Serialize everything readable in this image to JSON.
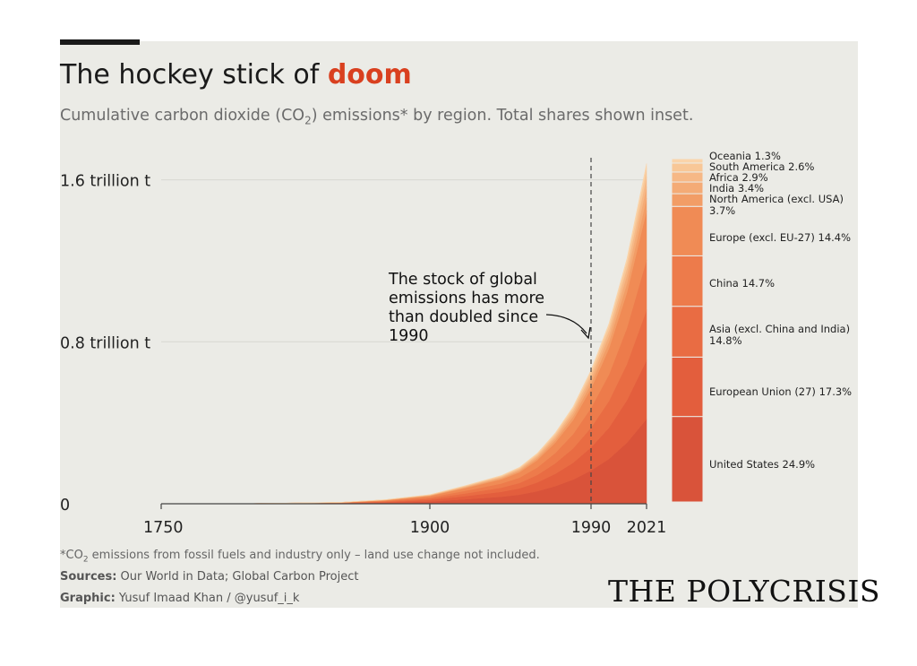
{
  "header": {
    "title_prefix": "The hockey stick of ",
    "title_highlight": "doom",
    "subtitle_pre": "Cumulative carbon dioxide (CO",
    "subtitle_sub": "2",
    "subtitle_post": ") emissions* by region. Total shares shown inset."
  },
  "footer": {
    "footnote_pre": "*CO",
    "footnote_sub": "2",
    "footnote_post": " emissions from fossil fuels and industry only – land use change not included.",
    "sources_label": "Sources:",
    "sources_text": " Our World in Data; Global Carbon Project",
    "graphic_label": "Graphic:",
    "graphic_text": " Yusuf Imaad Khan / @yusuf_i_k"
  },
  "brand": {
    "logo_text": "THE POLYCRISIS"
  },
  "colors": {
    "background": "#ebebe6",
    "accent": "#d9401f",
    "region_palette": [
      "#d9533a",
      "#e35e3d",
      "#e96c43",
      "#ed7b4b",
      "#f08b55",
      "#f29d66",
      "#f4ab76",
      "#f6b886",
      "#f8c797",
      "#fad4aa"
    ]
  },
  "chart_data": {
    "type": "area",
    "title": "The hockey stick of doom",
    "ylabel": "",
    "xlim": [
      1750,
      2021
    ],
    "ylim": [
      0,
      1.7
    ],
    "x_ticks": [
      1750,
      1900,
      1990,
      2021
    ],
    "y_ticks": [
      {
        "value": 0,
        "label": "0"
      },
      {
        "value": 0.8,
        "label": "0.8 trillion t"
      },
      {
        "value": 1.6,
        "label": "1.6 trillion t"
      }
    ],
    "x": [
      1750,
      1800,
      1850,
      1875,
      1900,
      1920,
      1940,
      1950,
      1960,
      1970,
      1980,
      1990,
      2000,
      2010,
      2021
    ],
    "total": [
      0,
      0.001,
      0.007,
      0.02,
      0.045,
      0.09,
      0.14,
      0.18,
      0.25,
      0.35,
      0.48,
      0.66,
      0.89,
      1.21,
      1.68
    ],
    "stack_order": "bottom to top",
    "series": [
      {
        "name": "United States",
        "share": 24.9
      },
      {
        "name": "European Union (27)",
        "share": 17.3
      },
      {
        "name": "Asia (excl. China and India)",
        "share": 14.8
      },
      {
        "name": "China",
        "share": 14.7
      },
      {
        "name": "Europe (excl. EU-27)",
        "share": 14.4
      },
      {
        "name": "North America (excl. USA)",
        "share": 3.7
      },
      {
        "name": "India",
        "share": 3.4
      },
      {
        "name": "Africa",
        "share": 2.9
      },
      {
        "name": "South America",
        "share": 2.6
      },
      {
        "name": "Oceania",
        "share": 1.3
      }
    ],
    "annotation": {
      "year": 1990,
      "lines": [
        "The stock of global",
        "emissions has more",
        "than doubled since",
        "1990"
      ]
    },
    "inset_labels": [
      [
        "United States 24.9%"
      ],
      [
        "European Union (27) 17.3%"
      ],
      [
        "Asia (excl. China and India)",
        "14.8%"
      ],
      [
        "China 14.7%"
      ],
      [
        "Europe (excl. EU-27) 14.4%"
      ],
      [
        "North America (excl. USA)",
        "3.7%"
      ],
      [
        "India 3.4%"
      ],
      [
        "Africa 2.9%"
      ],
      [
        "South America 2.6%"
      ],
      [
        "Oceania 1.3%"
      ]
    ]
  }
}
